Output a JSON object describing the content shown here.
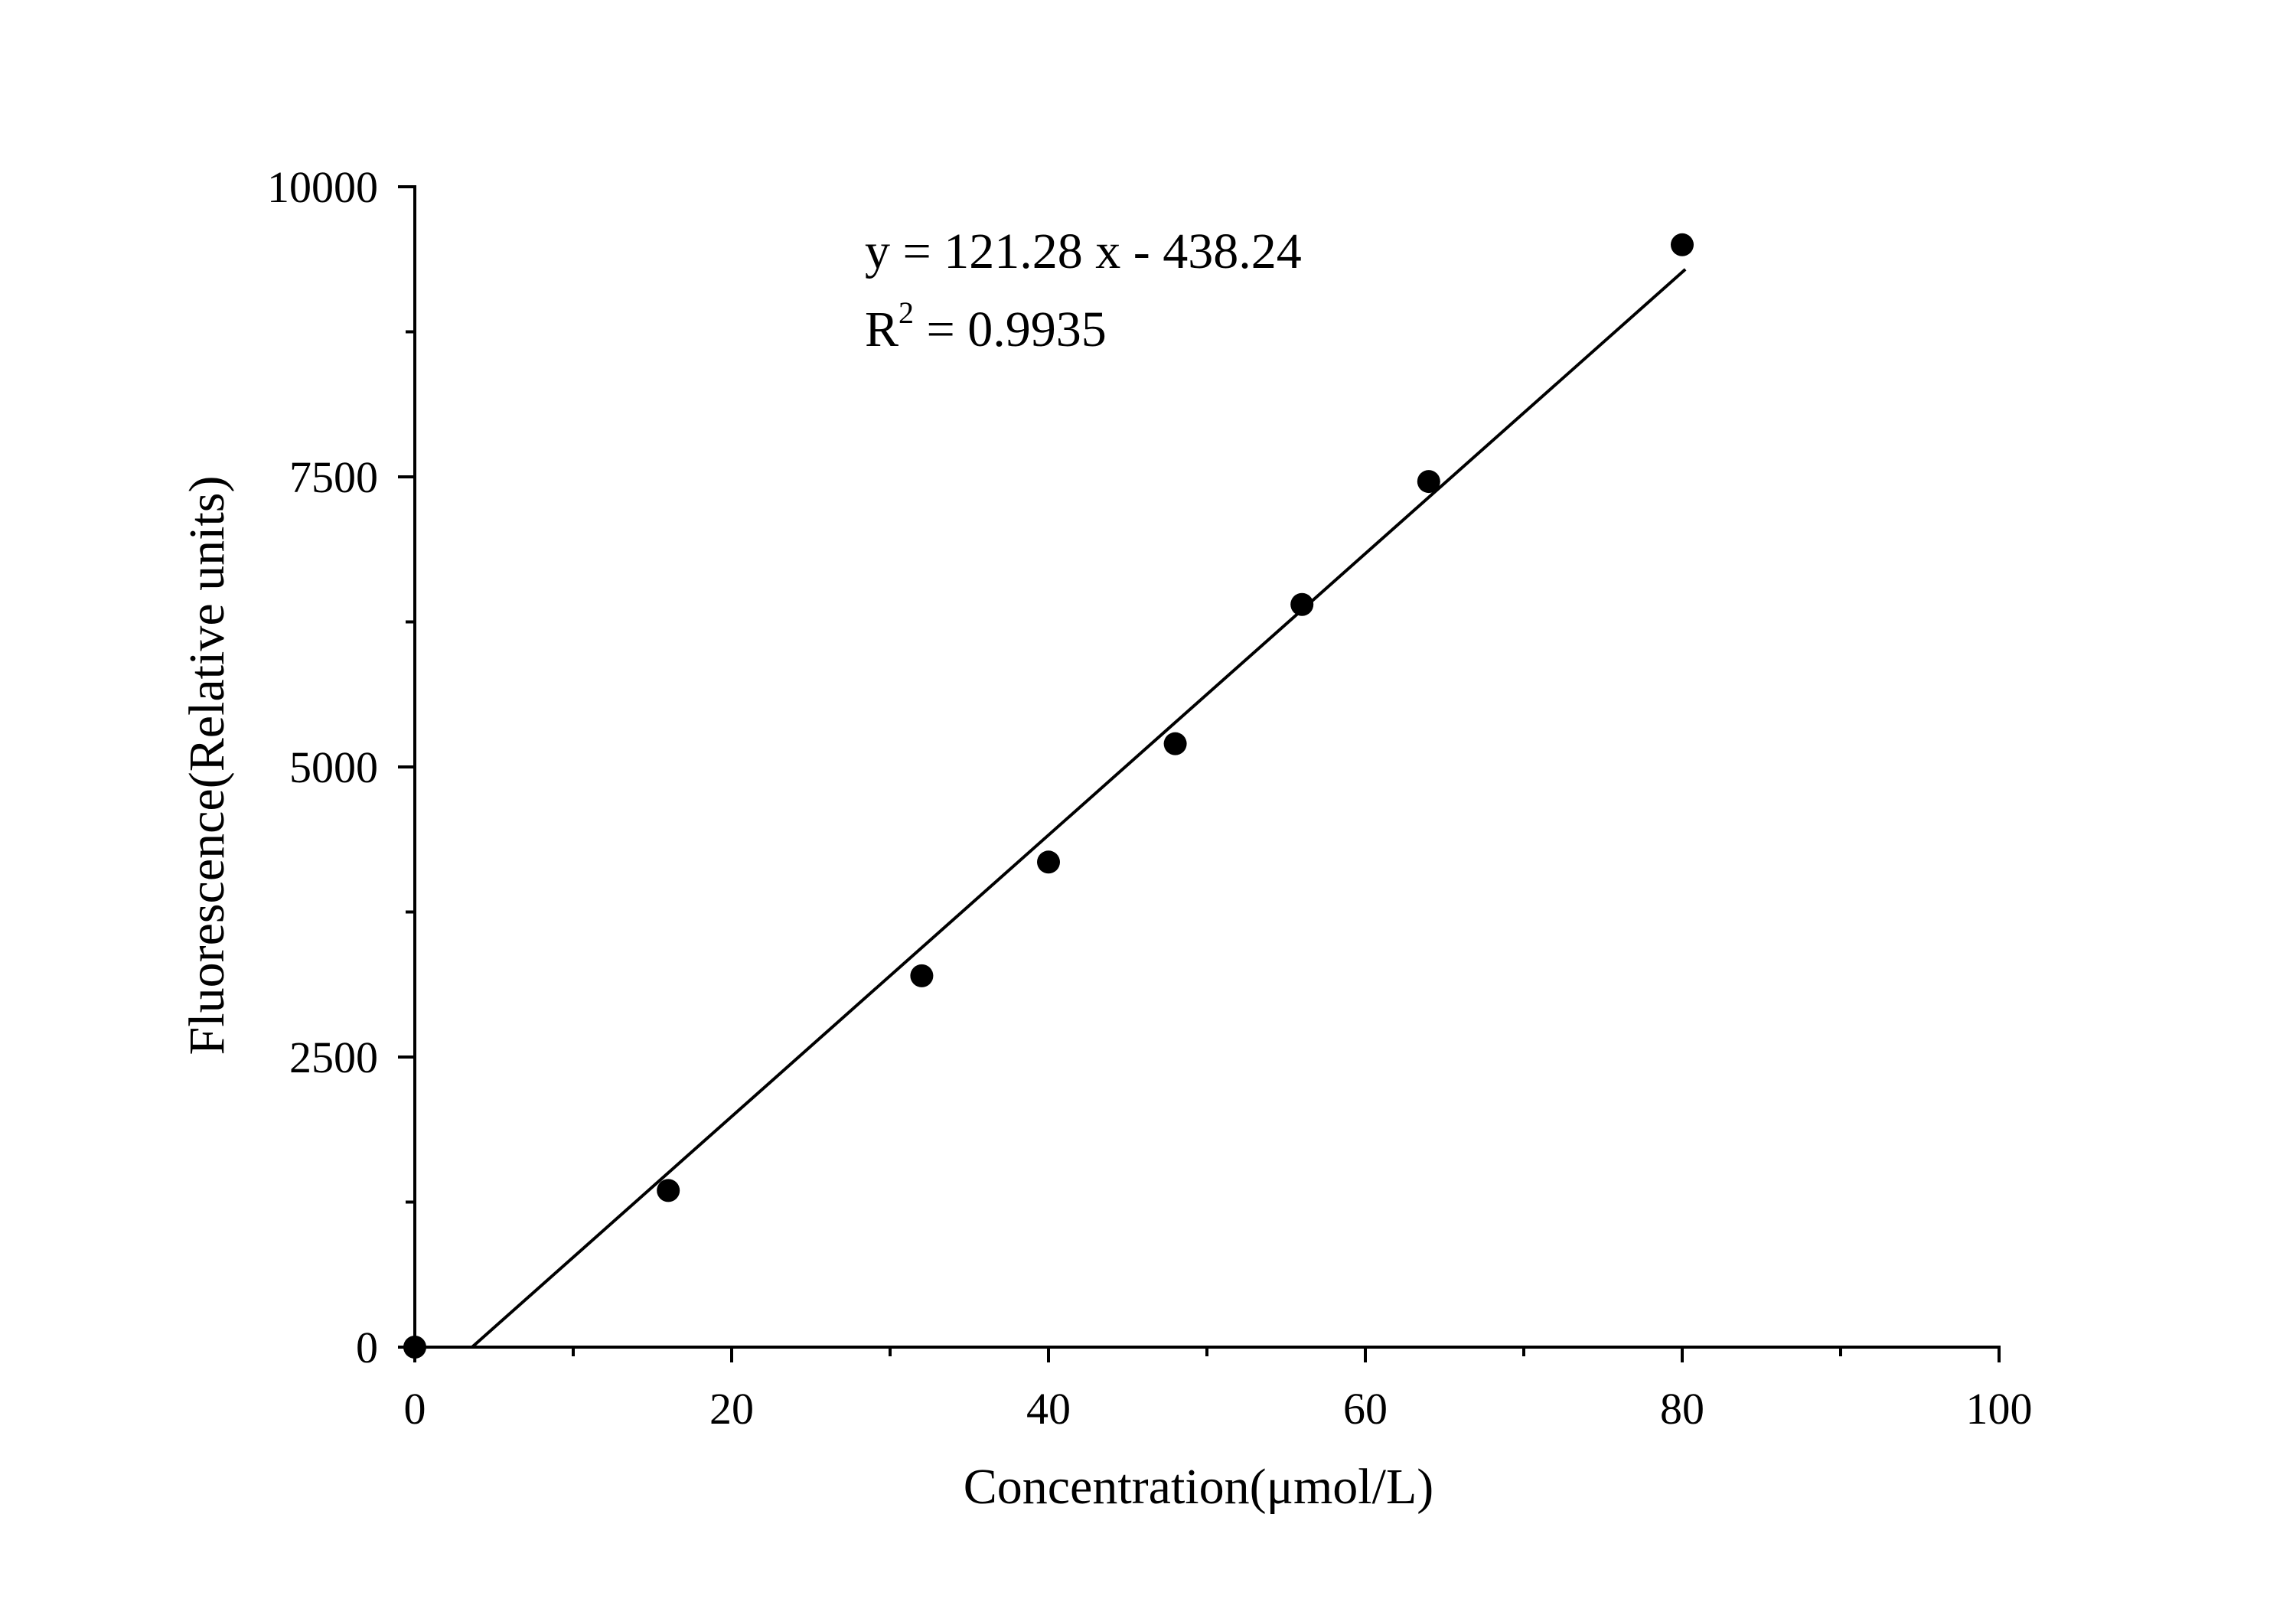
{
  "chart_data": {
    "type": "scatter",
    "title": "",
    "xlabel": "Concentration(μmol/L)",
    "ylabel": "Fluorescence(Relative units)",
    "xlim": [
      0,
      100
    ],
    "ylim": [
      0,
      10000
    ],
    "x_ticks": [
      0,
      20,
      40,
      60,
      80,
      100
    ],
    "x_tick_labels": [
      "0",
      "20",
      "40",
      "60",
      "80",
      "100"
    ],
    "x_minor_ticks": [
      10,
      30,
      50,
      70,
      90
    ],
    "y_ticks": [
      0,
      2500,
      5000,
      7500,
      10000
    ],
    "y_tick_labels": [
      "0",
      "2500",
      "5000",
      "7500",
      "10000"
    ],
    "y_minor_ticks": [
      1250,
      3750,
      6250,
      8750
    ],
    "grid": false,
    "legend": "none",
    "series": [
      {
        "x": [
          0,
          16,
          32,
          40,
          48,
          56,
          64,
          80
        ],
        "y": [
          0,
          1350,
          3200,
          4180,
          5200,
          6400,
          7460,
          9500
        ],
        "marker": "filled-circle",
        "color": "#000000"
      }
    ],
    "fit_line": {
      "slope": 121.28,
      "intercept": -438.24,
      "x_range": [
        3.6,
        80.2
      ],
      "color": "#000000"
    },
    "annotation": {
      "equation": "y = 121.28 x - 438.24",
      "r2_base": "R",
      "r2_sup": "2",
      "r2_value": " = 0.9935"
    }
  }
}
